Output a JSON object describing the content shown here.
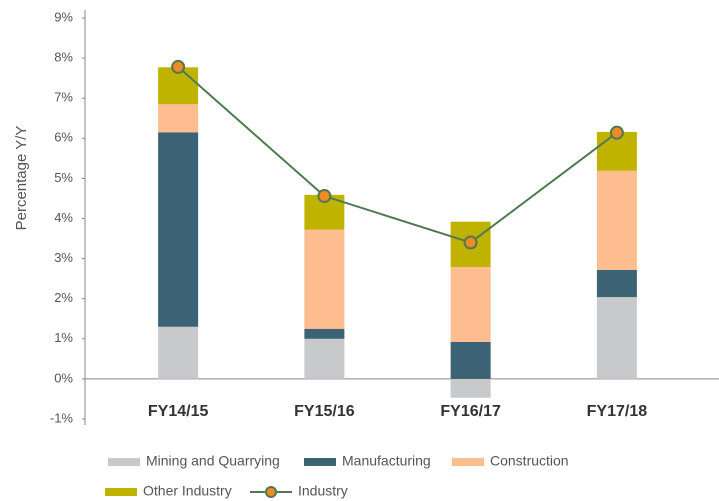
{
  "chart_data": {
    "type": "bar",
    "stacked": true,
    "y_label": "Percentage Y/Y",
    "categories": [
      "FY14/15",
      "FY15/16",
      "FY16/17",
      "FY17/18"
    ],
    "series": [
      {
        "name": "Mining and Quarrying",
        "color": "#c8c9cb",
        "values": [
          1.3,
          1.0,
          -0.47,
          2.04
        ]
      },
      {
        "name": "Manufacturing",
        "color": "#3b6275",
        "values": [
          4.85,
          0.25,
          0.92,
          0.68
        ]
      },
      {
        "name": "Construction",
        "color": "#fdbd8e",
        "values": [
          0.7,
          2.47,
          1.87,
          2.47
        ]
      },
      {
        "name": "Other Industry",
        "color": "#c0b300",
        "values": [
          0.92,
          0.87,
          1.13,
          0.97
        ]
      },
      {
        "name": "Industry",
        "type": "line",
        "color": "#4f7a4e",
        "marker_color": "#f08a24",
        "values": [
          7.78,
          4.56,
          3.4,
          6.14
        ]
      }
    ],
    "ylim": [
      -1,
      9
    ],
    "yticks": [
      {
        "value": -1,
        "label": "-1%"
      },
      {
        "value": 0,
        "label": "0%"
      },
      {
        "value": 1,
        "label": "1%"
      },
      {
        "value": 2,
        "label": "2%"
      },
      {
        "value": 3,
        "label": "3%"
      },
      {
        "value": 4,
        "label": "4%"
      },
      {
        "value": 5,
        "label": "5%"
      },
      {
        "value": 6,
        "label": "6%"
      },
      {
        "value": 7,
        "label": "7%"
      },
      {
        "value": 8,
        "label": "8%"
      },
      {
        "value": 9,
        "label": "9%"
      }
    ],
    "grid": false
  }
}
